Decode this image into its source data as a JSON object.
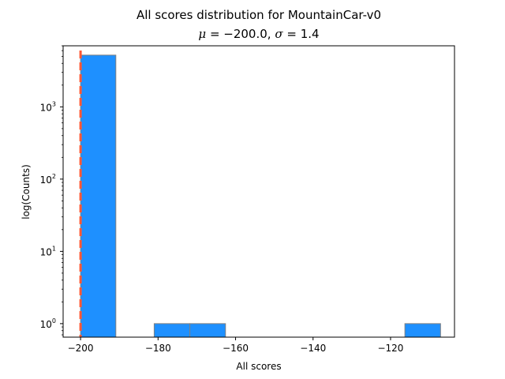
{
  "chart_data": {
    "type": "bar",
    "title": "All scores distribution for MountainCar-v0",
    "subtitle": {
      "mu_symbol": "μ",
      "mu_value": "−200.0",
      "sigma_symbol": "σ",
      "sigma_value": "1.4"
    },
    "xlabel": "All scores",
    "ylabel": "log(Counts)",
    "y_scale": "log",
    "xlim": [
      -204.5,
      -103.5
    ],
    "ylim": [
      0.65,
      7000
    ],
    "x_ticks": [
      -200,
      -180,
      -160,
      -140,
      -120
    ],
    "x_tick_labels": [
      "−200",
      "−180",
      "−160",
      "−140",
      "−120"
    ],
    "y_ticks": [
      {
        "value": 1,
        "base": "10",
        "exp": "0"
      },
      {
        "value": 10,
        "base": "10",
        "exp": "1"
      },
      {
        "value": 100,
        "base": "10",
        "exp": "2"
      },
      {
        "value": 1000,
        "base": "10",
        "exp": "3"
      }
    ],
    "bins": [
      {
        "x0": -200,
        "x1": -190.9,
        "count": 5200
      },
      {
        "x0": -181.0,
        "x1": -171.8,
        "count": 1
      },
      {
        "x0": -171.8,
        "x1": -162.6,
        "count": 1
      },
      {
        "x0": -116.3,
        "x1": -107.1,
        "count": 1
      }
    ],
    "mean_line": -200,
    "bar_color": "#1E90FF",
    "bar_edge_color": "#808080",
    "mean_line_color": "#FF5733",
    "grid": false
  }
}
